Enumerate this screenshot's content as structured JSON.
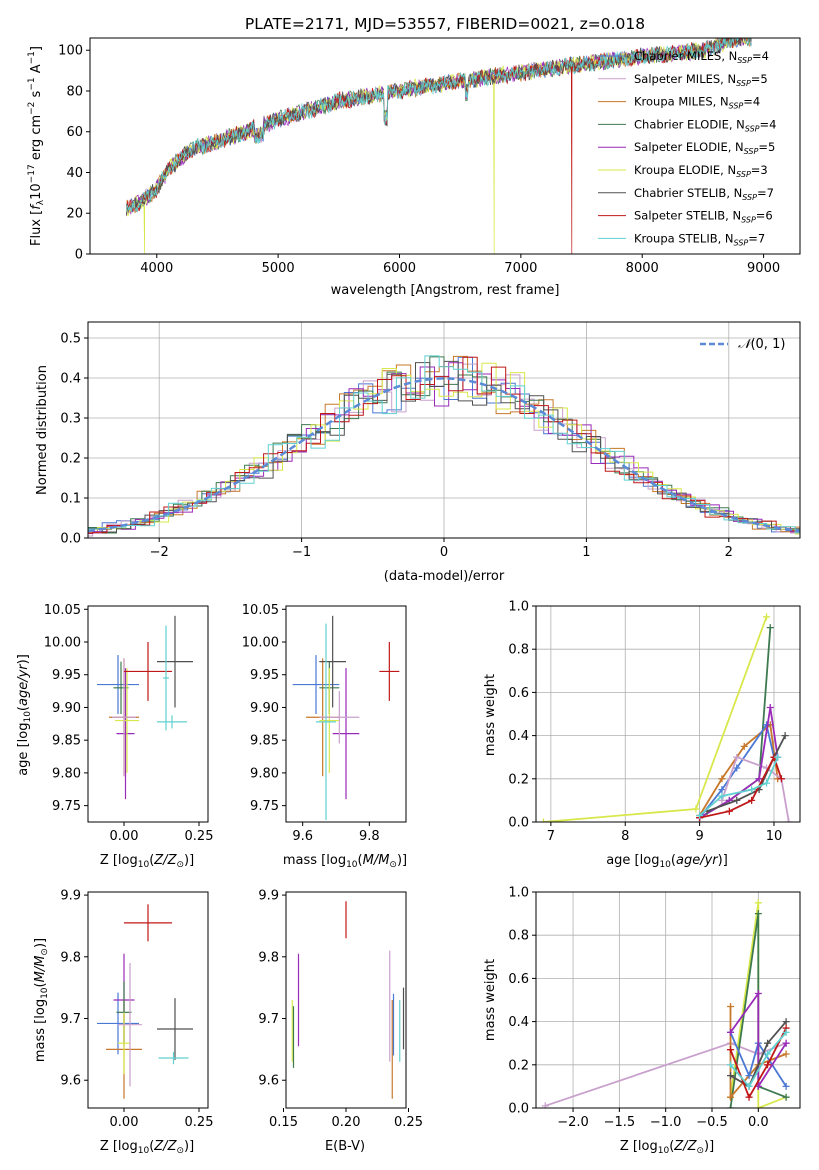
{
  "title": "PLATE=2171, MJD=53557, FIBERID=0021, z=0.018",
  "model_names": [
    {
      "name": "Chabrier MILES",
      "nssp": "4",
      "color": "#4a78d4"
    },
    {
      "name": "Salpeter MILES",
      "nssp": "5",
      "color": "#c9a0cc"
    },
    {
      "name": "Kroupa MILES",
      "nssp": "4",
      "color": "#c8782a"
    },
    {
      "name": "Chabrier ELODIE",
      "nssp": "4",
      "color": "#3e7a50"
    },
    {
      "name": "Salpeter ELODIE",
      "nssp": "5",
      "color": "#9a2ab8"
    },
    {
      "name": "Kroupa ELODIE",
      "nssp": "3",
      "color": "#d8e84a"
    },
    {
      "name": "Chabrier STELIB",
      "nssp": "7",
      "color": "#505050"
    },
    {
      "name": "Salpeter STELIB",
      "nssp": "6",
      "color": "#c01818"
    },
    {
      "name": "Kroupa STELIB",
      "nssp": "7",
      "color": "#60d0d0"
    }
  ],
  "chart_data": [
    {
      "panel": "spectrum",
      "type": "line",
      "xlabel": "wavelength [Angstrom, rest frame]",
      "xlim": [
        3450,
        9300
      ],
      "ylim": [
        0,
        106
      ],
      "xticks": [
        4000,
        5000,
        6000,
        7000,
        8000,
        9000
      ],
      "yticks": [
        0,
        20,
        40,
        60,
        80,
        100
      ],
      "x": [
        3750,
        3850,
        4000,
        4100,
        4300,
        4500,
        5000,
        5500,
        6000,
        6500,
        7000,
        7500,
        8000,
        8500,
        8800
      ],
      "y": [
        22,
        25,
        32,
        42,
        52,
        55,
        66,
        75,
        80,
        85,
        89,
        93,
        97,
        100,
        106
      ],
      "drops": [
        {
          "x": 3900,
          "series": 5
        },
        {
          "x": 6780,
          "series": 5
        },
        {
          "x": 7420,
          "series": 7
        }
      ],
      "legend": "top-right"
    },
    {
      "panel": "residual_histogram",
      "type": "line",
      "xlabel": "(data-model)/error",
      "ylabel": "Normed distribution",
      "xlim": [
        -2.5,
        2.5
      ],
      "ylim": [
        0,
        0.54
      ],
      "xticks": [
        -2,
        -1,
        0,
        1,
        2
      ],
      "yticks": [
        0.0,
        0.1,
        0.2,
        0.3,
        0.4,
        0.5
      ],
      "bin_width": 0.1,
      "gaussian_mean": 0,
      "gaussian_sigma": 1,
      "gaussian_color": "#5b8ad6",
      "grid": true,
      "legend": "top-right"
    },
    {
      "panel": "age_vs_Z",
      "type": "scatter",
      "xlim": [
        -0.12,
        0.28
      ],
      "ylim": [
        9.725,
        10.055
      ],
      "xticks": [
        "0.00",
        "0.25"
      ],
      "xtick_values": [
        0.0,
        0.25
      ],
      "yticks": [
        "9.75",
        "9.80",
        "9.85",
        "9.90",
        "9.95",
        "10.00",
        "10.05"
      ],
      "ytick_values": [
        9.75,
        9.8,
        9.85,
        9.9,
        9.95,
        10.0,
        10.05
      ],
      "points": [
        {
          "x": -0.02,
          "y": 9.935,
          "xerr": 0.07,
          "yerr": 0.045,
          "c": 0
        },
        {
          "x": 0.005,
          "y": 9.86,
          "xerr": 0.03,
          "yerr": 0.1,
          "c": 4
        },
        {
          "x": 0.0,
          "y": 9.885,
          "xerr": 0.05,
          "yerr": 0.09,
          "c": 2
        },
        {
          "x": -0.01,
          "y": 9.93,
          "xerr": 0.025,
          "yerr": 0.04,
          "c": 3
        },
        {
          "x": 0.01,
          "y": 9.88,
          "xerr": 0.04,
          "yerr": 0.08,
          "c": 5
        },
        {
          "x": 0.0,
          "y": 9.885,
          "xerr": 0.04,
          "yerr": 0.09,
          "c": 1
        },
        {
          "x": 0.17,
          "y": 9.97,
          "xerr": 0.06,
          "yerr": 0.07,
          "c": 6
        },
        {
          "x": 0.08,
          "y": 9.955,
          "xerr": 0.08,
          "yerr": 0.045,
          "c": 7
        },
        {
          "x": 0.16,
          "y": 9.878,
          "xerr": 0.05,
          "yerr": 0.01,
          "c": 8
        },
        {
          "x": 0.14,
          "y": 9.945,
          "xerr": 0.01,
          "yerr": 0.08,
          "c": 8
        }
      ]
    },
    {
      "panel": "age_vs_mass",
      "type": "scatter",
      "xlim": [
        9.55,
        9.91
      ],
      "ylim": [
        9.725,
        10.055
      ],
      "xticks": [
        "9.6",
        "9.8"
      ],
      "xtick_values": [
        9.6,
        9.8
      ],
      "yticks": [
        "9.75",
        "9.80",
        "9.85",
        "9.90",
        "9.95",
        "10.00",
        "10.05"
      ],
      "ytick_values": [
        9.75,
        9.8,
        9.85,
        9.9,
        9.95,
        10.0,
        10.05
      ],
      "points": [
        {
          "x": 9.64,
          "y": 9.935,
          "xerr": 0.07,
          "yerr": 0.045,
          "c": 0
        },
        {
          "x": 9.73,
          "y": 9.86,
          "xerr": 0.04,
          "yerr": 0.1,
          "c": 4
        },
        {
          "x": 9.66,
          "y": 9.885,
          "xerr": 0.05,
          "yerr": 0.09,
          "c": 2
        },
        {
          "x": 9.68,
          "y": 9.93,
          "xerr": 0.03,
          "yerr": 0.04,
          "c": 3
        },
        {
          "x": 9.68,
          "y": 9.88,
          "xerr": 0.03,
          "yerr": 0.08,
          "c": 5
        },
        {
          "x": 9.71,
          "y": 9.885,
          "xerr": 0.06,
          "yerr": 0.04,
          "c": 1
        },
        {
          "x": 9.69,
          "y": 9.97,
          "xerr": 0.04,
          "yerr": 0.07,
          "c": 6
        },
        {
          "x": 9.86,
          "y": 9.955,
          "xerr": 0.03,
          "yerr": 0.045,
          "c": 7
        },
        {
          "x": 9.67,
          "y": 9.878,
          "xerr": 0.03,
          "yerr": 0.15,
          "c": 8
        }
      ]
    },
    {
      "panel": "massweight_vs_age",
      "type": "line",
      "xlim": [
        6.8,
        10.35
      ],
      "ylim": [
        0.0,
        1.0
      ],
      "xticks": [
        "7",
        "8",
        "9",
        "10"
      ],
      "xtick_values": [
        7,
        8,
        9,
        10
      ],
      "yticks": [
        "0.0",
        "0.2",
        "0.4",
        "0.6",
        "0.8",
        "1.0"
      ],
      "ytick_values": [
        0.0,
        0.2,
        0.4,
        0.6,
        0.8,
        1.0
      ],
      "grid": true,
      "series": [
        {
          "c": 5,
          "x": [
            6.9,
            8.95,
            9.9
          ],
          "y": [
            0.0,
            0.06,
            0.95
          ]
        },
        {
          "c": 3,
          "x": [
            9.0,
            9.4,
            9.8,
            9.95
          ],
          "y": [
            0.02,
            0.1,
            0.2,
            0.9
          ]
        },
        {
          "c": 2,
          "x": [
            9.0,
            9.3,
            9.6,
            9.95,
            10.05
          ],
          "y": [
            0.03,
            0.2,
            0.35,
            0.45,
            0.2
          ]
        },
        {
          "c": 0,
          "x": [
            9.0,
            9.3,
            9.5,
            9.9,
            10.0
          ],
          "y": [
            0.02,
            0.15,
            0.25,
            0.45,
            0.3
          ]
        },
        {
          "c": 1,
          "x": [
            9.3,
            9.5,
            9.9,
            10.1,
            10.2
          ],
          "y": [
            0.1,
            0.3,
            0.25,
            0.2,
            0.0
          ]
        },
        {
          "c": 4,
          "x": [
            9.0,
            9.4,
            9.8,
            9.95,
            10.05
          ],
          "y": [
            0.02,
            0.1,
            0.2,
            0.53,
            0.3
          ]
        },
        {
          "c": 6,
          "x": [
            9.1,
            9.5,
            9.8,
            10.0,
            10.15
          ],
          "y": [
            0.05,
            0.1,
            0.15,
            0.3,
            0.4
          ]
        },
        {
          "c": 7,
          "x": [
            9.0,
            9.4,
            9.7,
            10.0,
            10.1
          ],
          "y": [
            0.02,
            0.05,
            0.1,
            0.3,
            0.2
          ]
        },
        {
          "c": 8,
          "x": [
            9.0,
            9.3,
            9.7,
            9.9,
            10.05
          ],
          "y": [
            0.03,
            0.12,
            0.15,
            0.18,
            0.3
          ]
        }
      ]
    },
    {
      "panel": "mass_vs_Z",
      "type": "scatter",
      "xlim": [
        -0.12,
        0.28
      ],
      "ylim": [
        9.555,
        9.905
      ],
      "xticks": [
        "0.00",
        "0.25"
      ],
      "xtick_values": [
        0.0,
        0.25
      ],
      "yticks": [
        "9.6",
        "9.7",
        "9.8",
        "9.9"
      ],
      "ytick_values": [
        9.6,
        9.7,
        9.8,
        9.9
      ],
      "points": [
        {
          "x": -0.02,
          "y": 9.692,
          "xerr": 0.07,
          "yerr": 0.05,
          "c": 0
        },
        {
          "x": 0.0,
          "y": 9.73,
          "xerr": 0.035,
          "yerr": 0.075,
          "c": 4
        },
        {
          "x": 0.0,
          "y": 9.65,
          "xerr": 0.06,
          "yerr": 0.08,
          "c": 2
        },
        {
          "x": 0.0,
          "y": 9.71,
          "xerr": 0.025,
          "yerr": 0.05,
          "c": 3
        },
        {
          "x": 0.0,
          "y": 9.66,
          "xerr": 0.02,
          "yerr": 0.05,
          "c": 5
        },
        {
          "x": 0.02,
          "y": 9.69,
          "xerr": 0.04,
          "yerr": 0.1,
          "c": 1
        },
        {
          "x": 0.17,
          "y": 9.683,
          "xerr": 0.06,
          "yerr": 0.05,
          "c": 6
        },
        {
          "x": 0.08,
          "y": 9.855,
          "xerr": 0.08,
          "yerr": 0.03,
          "c": 7
        },
        {
          "x": 0.165,
          "y": 9.636,
          "xerr": 0.05,
          "yerr": 0.01,
          "c": 8
        }
      ]
    },
    {
      "panel": "mass_vs_EBV",
      "type": "scatter",
      "xlim": [
        0.152,
        0.248
      ],
      "ylim": [
        9.555,
        9.905
      ],
      "xticks": [
        "0.15",
        "0.20",
        "0.25"
      ],
      "xtick_values": [
        0.15,
        0.2,
        0.25
      ],
      "yticks": [
        "9.6",
        "9.7",
        "9.8",
        "9.9"
      ],
      "ytick_values": [
        9.6,
        9.7,
        9.8,
        9.9
      ],
      "points": [
        {
          "x": 0.157,
          "y": 9.68,
          "yerr": 0.05,
          "c": 5
        },
        {
          "x": 0.158,
          "y": 9.67,
          "yerr": 0.05,
          "c": 3
        },
        {
          "x": 0.162,
          "y": 9.73,
          "yerr": 0.075,
          "c": 4
        },
        {
          "x": 0.2,
          "y": 9.86,
          "yerr": 0.03,
          "c": 7
        },
        {
          "x": 0.235,
          "y": 9.72,
          "yerr": 0.09,
          "c": 1
        },
        {
          "x": 0.237,
          "y": 9.65,
          "yerr": 0.08,
          "c": 2
        },
        {
          "x": 0.238,
          "y": 9.69,
          "yerr": 0.05,
          "c": 0
        },
        {
          "x": 0.243,
          "y": 9.68,
          "yerr": 0.05,
          "c": 8
        },
        {
          "x": 0.246,
          "y": 9.7,
          "yerr": 0.05,
          "c": 6
        }
      ]
    },
    {
      "panel": "massweight_vs_Z",
      "type": "line",
      "xlim": [
        -2.4,
        0.45
      ],
      "ylim": [
        0.0,
        1.0
      ],
      "xticks": [
        "−2.0",
        "−1.5",
        "−1.0",
        "−0.5",
        "0.0"
      ],
      "xtick_values": [
        -2.0,
        -1.5,
        -1.0,
        -0.5,
        0.0
      ],
      "yticks": [
        "0.0",
        "0.2",
        "0.4",
        "0.6",
        "0.8",
        "1.0"
      ],
      "ytick_values": [
        0.0,
        0.2,
        0.4,
        0.6,
        0.8,
        1.0
      ],
      "grid": true,
      "series": [
        {
          "c": 1,
          "x": [
            -2.3,
            -0.3,
            0.0,
            0.3
          ],
          "y": [
            0.01,
            0.3,
            0.25,
            0.3
          ]
        },
        {
          "c": 5,
          "x": [
            -0.3,
            0.0,
            0.0,
            0.3
          ],
          "y": [
            0.05,
            0.95,
            0.0,
            0.05
          ]
        },
        {
          "c": 3,
          "x": [
            -0.3,
            0.0,
            0.0,
            0.3
          ],
          "y": [
            0.0,
            0.9,
            0.1,
            0.05
          ]
        },
        {
          "c": 2,
          "x": [
            -0.3,
            -0.3,
            0.0,
            0.3
          ],
          "y": [
            0.47,
            0.05,
            0.2,
            0.25
          ]
        },
        {
          "c": 0,
          "x": [
            -0.3,
            -0.1,
            0.0,
            0.3
          ],
          "y": [
            0.35,
            0.15,
            0.3,
            0.1
          ]
        },
        {
          "c": 4,
          "x": [
            -0.3,
            0.0,
            0.0,
            0.3
          ],
          "y": [
            0.35,
            0.53,
            0.1,
            0.3
          ]
        },
        {
          "c": 6,
          "x": [
            -0.3,
            -0.1,
            0.1,
            0.3
          ],
          "y": [
            0.15,
            0.1,
            0.3,
            0.4
          ]
        },
        {
          "c": 7,
          "x": [
            -0.3,
            -0.1,
            0.1,
            0.3
          ],
          "y": [
            0.27,
            0.05,
            0.2,
            0.37
          ]
        },
        {
          "c": 8,
          "x": [
            -0.3,
            -0.1,
            0.1,
            0.3
          ],
          "y": [
            0.2,
            0.1,
            0.25,
            0.35
          ]
        }
      ]
    }
  ]
}
